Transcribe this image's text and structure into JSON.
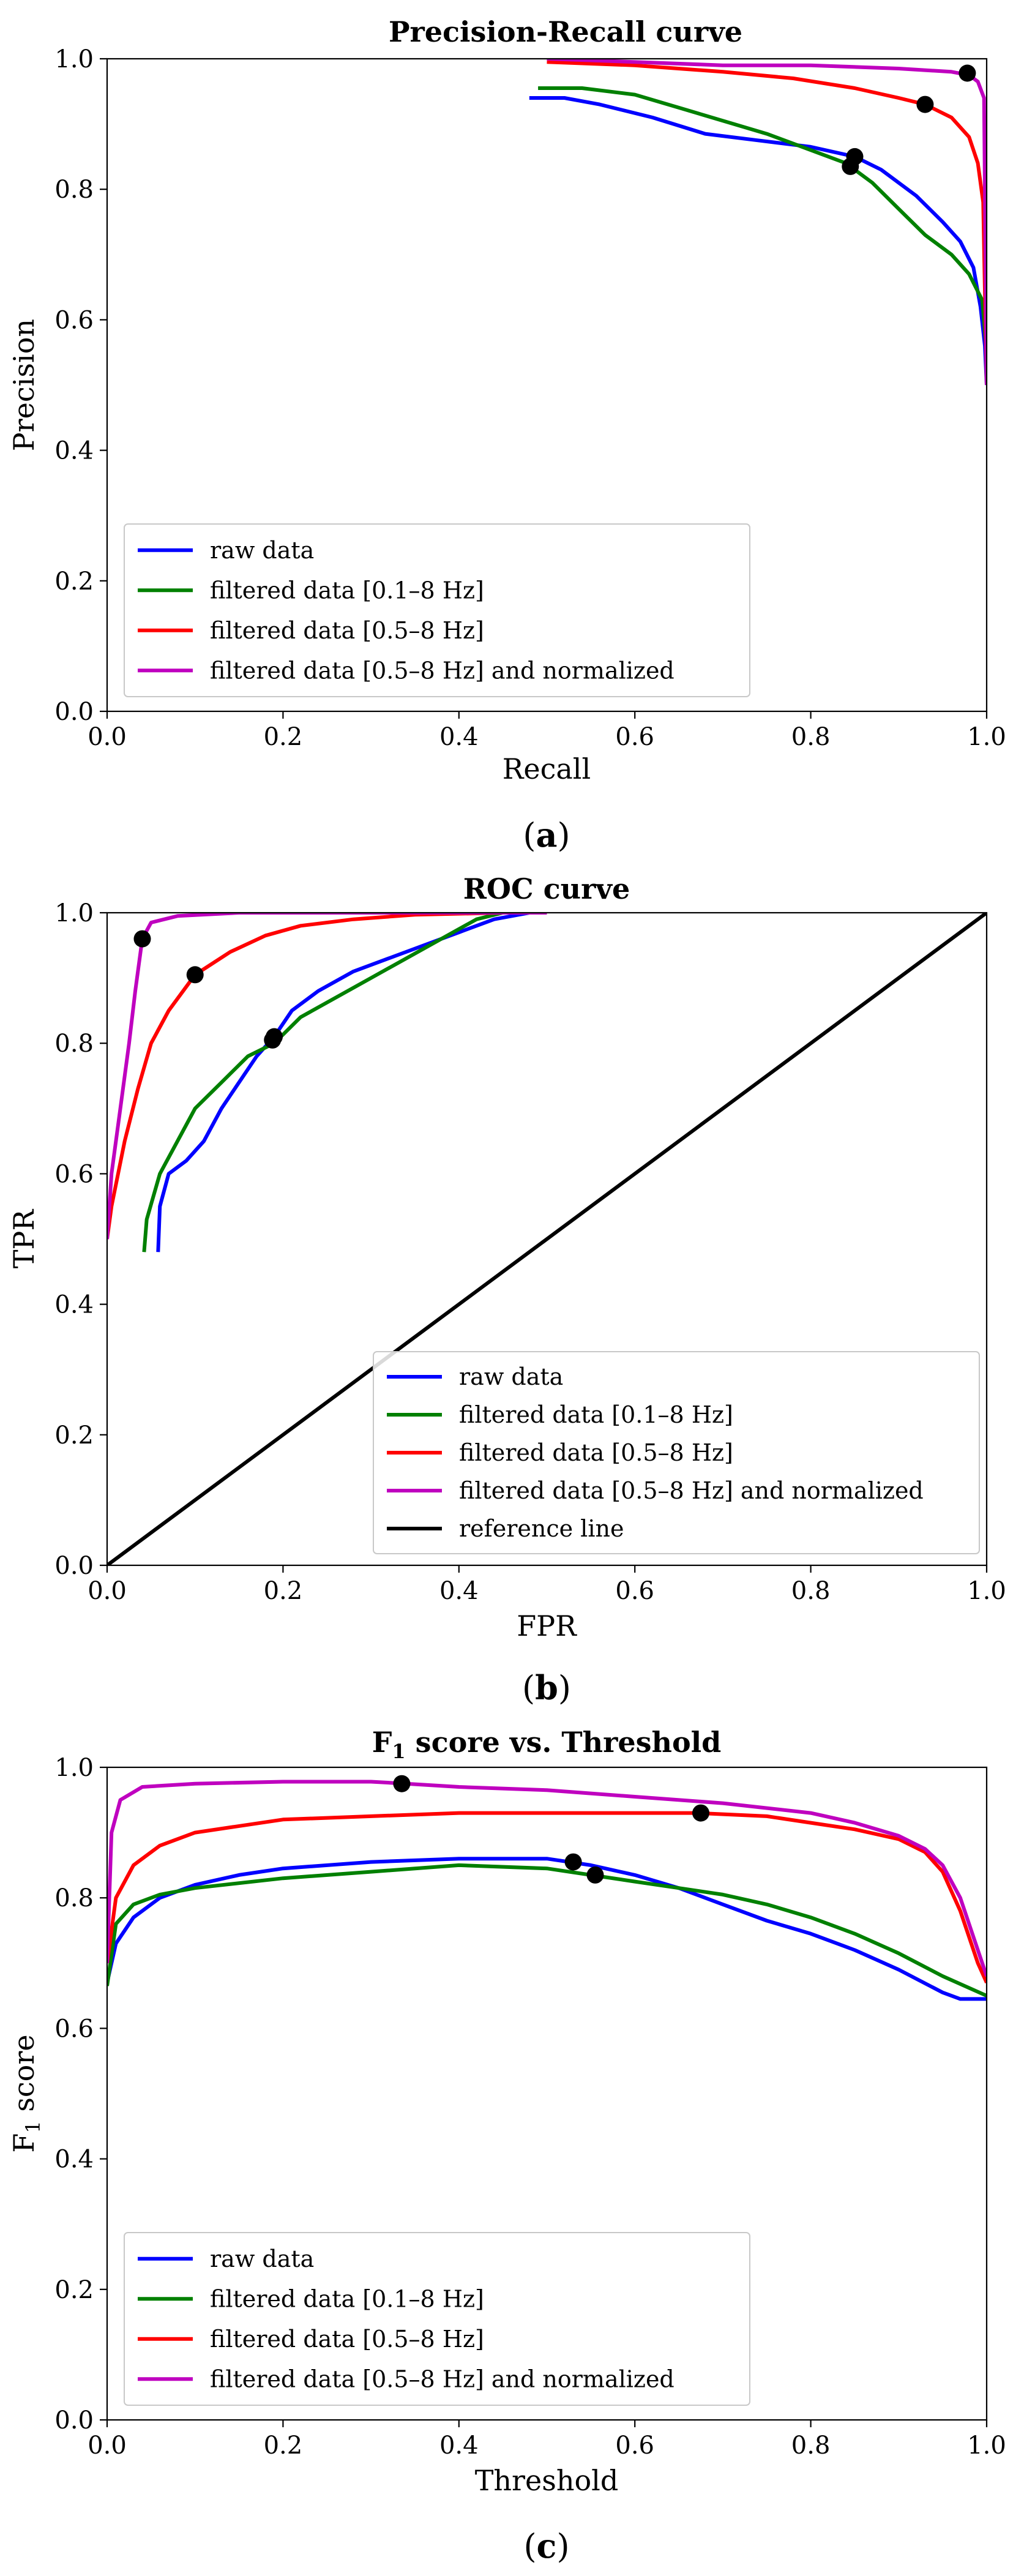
{
  "figure": {
    "captions": [
      "a",
      "b",
      "c"
    ]
  },
  "chart_data": [
    {
      "type": "line",
      "title": "Precision-Recall curve",
      "xlabel": "Recall",
      "ylabel": "Precision",
      "xlim": [
        0,
        1
      ],
      "ylim": [
        0,
        1
      ],
      "xticks": [
        "0.0",
        "0.2",
        "0.4",
        "0.6",
        "0.8",
        "1.0"
      ],
      "yticks": [
        "0.0",
        "0.2",
        "0.4",
        "0.6",
        "0.8",
        "1.0"
      ],
      "legend_position": "lower-left",
      "series": [
        {
          "name": "raw data",
          "color": "#0000ff",
          "points": [
            [
              0.48,
              0.94
            ],
            [
              0.52,
              0.94
            ],
            [
              0.56,
              0.93
            ],
            [
              0.62,
              0.91
            ],
            [
              0.68,
              0.885
            ],
            [
              0.74,
              0.875
            ],
            [
              0.8,
              0.865
            ],
            [
              0.85,
              0.85
            ],
            [
              0.88,
              0.83
            ],
            [
              0.92,
              0.79
            ],
            [
              0.95,
              0.75
            ],
            [
              0.97,
              0.72
            ],
            [
              0.985,
              0.68
            ],
            [
              0.993,
              0.62
            ],
            [
              0.998,
              0.56
            ],
            [
              1.0,
              0.5
            ]
          ],
          "markers": [
            [
              0.85,
              0.85
            ]
          ]
        },
        {
          "name": "filtered data [0.1–8 Hz]",
          "color": "#008000",
          "points": [
            [
              0.49,
              0.955
            ],
            [
              0.54,
              0.955
            ],
            [
              0.6,
              0.945
            ],
            [
              0.65,
              0.925
            ],
            [
              0.7,
              0.905
            ],
            [
              0.75,
              0.885
            ],
            [
              0.8,
              0.86
            ],
            [
              0.84,
              0.84
            ],
            [
              0.87,
              0.81
            ],
            [
              0.9,
              0.77
            ],
            [
              0.93,
              0.73
            ],
            [
              0.96,
              0.7
            ],
            [
              0.98,
              0.67
            ],
            [
              0.995,
              0.63
            ],
            [
              1.0,
              0.55
            ]
          ],
          "markers": [
            [
              0.845,
              0.835
            ]
          ]
        },
        {
          "name": "filtered data [0.5–8 Hz]",
          "color": "#ff0000",
          "points": [
            [
              0.5,
              0.995
            ],
            [
              0.6,
              0.99
            ],
            [
              0.7,
              0.98
            ],
            [
              0.78,
              0.97
            ],
            [
              0.85,
              0.955
            ],
            [
              0.9,
              0.94
            ],
            [
              0.93,
              0.93
            ],
            [
              0.96,
              0.91
            ],
            [
              0.98,
              0.88
            ],
            [
              0.99,
              0.84
            ],
            [
              0.996,
              0.78
            ],
            [
              1.0,
              0.5
            ]
          ],
          "markers": [
            [
              0.93,
              0.93
            ]
          ]
        },
        {
          "name": "filtered data [0.5–8 Hz] and normalized",
          "color": "#bf00bf",
          "points": [
            [
              0.5,
              1.0
            ],
            [
              0.6,
              0.995
            ],
            [
              0.7,
              0.99
            ],
            [
              0.8,
              0.99
            ],
            [
              0.9,
              0.985
            ],
            [
              0.96,
              0.98
            ],
            [
              0.98,
              0.975
            ],
            [
              0.99,
              0.965
            ],
            [
              0.997,
              0.94
            ],
            [
              1.0,
              0.5
            ]
          ],
          "markers": [
            [
              0.978,
              0.978
            ]
          ]
        }
      ]
    },
    {
      "type": "line",
      "title": "ROC curve",
      "xlabel": "FPR",
      "ylabel": "TPR",
      "xlim": [
        0,
        1
      ],
      "ylim": [
        0,
        1
      ],
      "xticks": [
        "0.0",
        "0.2",
        "0.4",
        "0.6",
        "0.8",
        "1.0"
      ],
      "yticks": [
        "0.0",
        "0.2",
        "0.4",
        "0.6",
        "0.8",
        "1.0"
      ],
      "legend_position": "lower-right",
      "series": [
        {
          "name": "raw data",
          "color": "#0000ff",
          "points": [
            [
              0.058,
              0.48
            ],
            [
              0.06,
              0.55
            ],
            [
              0.07,
              0.6
            ],
            [
              0.09,
              0.62
            ],
            [
              0.11,
              0.65
            ],
            [
              0.13,
              0.7
            ],
            [
              0.15,
              0.74
            ],
            [
              0.17,
              0.78
            ],
            [
              0.19,
              0.81
            ],
            [
              0.21,
              0.85
            ],
            [
              0.24,
              0.88
            ],
            [
              0.28,
              0.91
            ],
            [
              0.32,
              0.93
            ],
            [
              0.36,
              0.95
            ],
            [
              0.4,
              0.97
            ],
            [
              0.44,
              0.99
            ],
            [
              0.48,
              1.0
            ]
          ],
          "markers": [
            [
              0.19,
              0.81
            ]
          ]
        },
        {
          "name": "filtered data [0.1–8 Hz]",
          "color": "#008000",
          "points": [
            [
              0.042,
              0.48
            ],
            [
              0.045,
              0.53
            ],
            [
              0.06,
              0.6
            ],
            [
              0.08,
              0.65
            ],
            [
              0.1,
              0.7
            ],
            [
              0.13,
              0.74
            ],
            [
              0.16,
              0.78
            ],
            [
              0.19,
              0.8
            ],
            [
              0.22,
              0.84
            ],
            [
              0.26,
              0.87
            ],
            [
              0.3,
              0.9
            ],
            [
              0.34,
              0.93
            ],
            [
              0.38,
              0.96
            ],
            [
              0.42,
              0.99
            ],
            [
              0.45,
              1.0
            ],
            [
              0.5,
              1.0
            ]
          ],
          "markers": [
            [
              0.188,
              0.805
            ]
          ]
        },
        {
          "name": "filtered data [0.5–8 Hz]",
          "color": "#ff0000",
          "points": [
            [
              0.0,
              0.5
            ],
            [
              0.005,
              0.55
            ],
            [
              0.02,
              0.65
            ],
            [
              0.035,
              0.73
            ],
            [
              0.05,
              0.8
            ],
            [
              0.07,
              0.85
            ],
            [
              0.1,
              0.905
            ],
            [
              0.14,
              0.94
            ],
            [
              0.18,
              0.965
            ],
            [
              0.22,
              0.98
            ],
            [
              0.28,
              0.99
            ],
            [
              0.35,
              0.997
            ],
            [
              0.45,
              1.0
            ],
            [
              0.5,
              1.0
            ]
          ],
          "markers": [
            [
              0.1,
              0.905
            ]
          ]
        },
        {
          "name": "filtered data [0.5–8 Hz] and normalized",
          "color": "#bf00bf",
          "points": [
            [
              0.0,
              0.5
            ],
            [
              0.005,
              0.6
            ],
            [
              0.015,
              0.7
            ],
            [
              0.025,
              0.8
            ],
            [
              0.032,
              0.88
            ],
            [
              0.04,
              0.96
            ],
            [
              0.05,
              0.985
            ],
            [
              0.08,
              0.995
            ],
            [
              0.15,
              1.0
            ],
            [
              0.5,
              1.0
            ]
          ],
          "markers": [
            [
              0.04,
              0.96
            ]
          ]
        },
        {
          "name": "reference line",
          "color": "#000000",
          "points": [
            [
              0.0,
              0.0
            ],
            [
              1.0,
              1.0
            ]
          ],
          "markers": []
        }
      ]
    },
    {
      "type": "line",
      "title": "F",
      "title_sub": "1",
      "title_rest": " score vs. Threshold",
      "xlabel": "Threshold",
      "ylabel": "F",
      "ylabel_sub": "1",
      "ylabel_rest": " score",
      "xlim": [
        0,
        1
      ],
      "ylim": [
        0,
        1
      ],
      "xticks": [
        "0.0",
        "0.2",
        "0.4",
        "0.6",
        "0.8",
        "1.0"
      ],
      "yticks": [
        "0.0",
        "0.2",
        "0.4",
        "0.6",
        "0.8",
        "1.0"
      ],
      "legend_position": "lower-left",
      "series": [
        {
          "name": "raw data",
          "color": "#0000ff",
          "points": [
            [
              0.0,
              0.67
            ],
            [
              0.01,
              0.73
            ],
            [
              0.03,
              0.77
            ],
            [
              0.06,
              0.8
            ],
            [
              0.1,
              0.82
            ],
            [
              0.15,
              0.835
            ],
            [
              0.2,
              0.845
            ],
            [
              0.3,
              0.855
            ],
            [
              0.4,
              0.86
            ],
            [
              0.5,
              0.86
            ],
            [
              0.55,
              0.85
            ],
            [
              0.6,
              0.835
            ],
            [
              0.65,
              0.815
            ],
            [
              0.7,
              0.79
            ],
            [
              0.75,
              0.765
            ],
            [
              0.8,
              0.745
            ],
            [
              0.85,
              0.72
            ],
            [
              0.9,
              0.69
            ],
            [
              0.95,
              0.655
            ],
            [
              0.97,
              0.645
            ],
            [
              1.0,
              0.645
            ]
          ],
          "markers": [
            [
              0.53,
              0.855
            ]
          ]
        },
        {
          "name": "filtered data [0.1–8 Hz]",
          "color": "#008000",
          "points": [
            [
              0.0,
              0.665
            ],
            [
              0.01,
              0.76
            ],
            [
              0.03,
              0.79
            ],
            [
              0.06,
              0.805
            ],
            [
              0.1,
              0.815
            ],
            [
              0.2,
              0.83
            ],
            [
              0.3,
              0.84
            ],
            [
              0.4,
              0.85
            ],
            [
              0.5,
              0.845
            ],
            [
              0.55,
              0.835
            ],
            [
              0.6,
              0.825
            ],
            [
              0.65,
              0.815
            ],
            [
              0.7,
              0.805
            ],
            [
              0.75,
              0.79
            ],
            [
              0.8,
              0.77
            ],
            [
              0.85,
              0.745
            ],
            [
              0.9,
              0.715
            ],
            [
              0.95,
              0.68
            ],
            [
              1.0,
              0.65
            ]
          ],
          "markers": [
            [
              0.555,
              0.835
            ]
          ]
        },
        {
          "name": "filtered data [0.5–8 Hz]",
          "color": "#ff0000",
          "points": [
            [
              0.0,
              0.7
            ],
            [
              0.01,
              0.8
            ],
            [
              0.03,
              0.85
            ],
            [
              0.06,
              0.88
            ],
            [
              0.1,
              0.9
            ],
            [
              0.2,
              0.92
            ],
            [
              0.3,
              0.925
            ],
            [
              0.4,
              0.93
            ],
            [
              0.5,
              0.93
            ],
            [
              0.6,
              0.93
            ],
            [
              0.67,
              0.93
            ],
            [
              0.75,
              0.925
            ],
            [
              0.8,
              0.915
            ],
            [
              0.85,
              0.905
            ],
            [
              0.9,
              0.89
            ],
            [
              0.93,
              0.87
            ],
            [
              0.95,
              0.84
            ],
            [
              0.97,
              0.78
            ],
            [
              0.99,
              0.7
            ],
            [
              1.0,
              0.67
            ]
          ],
          "markers": [
            [
              0.675,
              0.93
            ]
          ]
        },
        {
          "name": "filtered data [0.5–8 Hz] and normalized",
          "color": "#bf00bf",
          "points": [
            [
              0.0,
              0.7
            ],
            [
              0.005,
              0.9
            ],
            [
              0.015,
              0.95
            ],
            [
              0.04,
              0.97
            ],
            [
              0.1,
              0.975
            ],
            [
              0.2,
              0.978
            ],
            [
              0.3,
              0.978
            ],
            [
              0.34,
              0.975
            ],
            [
              0.4,
              0.97
            ],
            [
              0.5,
              0.965
            ],
            [
              0.6,
              0.955
            ],
            [
              0.7,
              0.945
            ],
            [
              0.8,
              0.93
            ],
            [
              0.85,
              0.915
            ],
            [
              0.9,
              0.895
            ],
            [
              0.93,
              0.875
            ],
            [
              0.95,
              0.85
            ],
            [
              0.97,
              0.8
            ],
            [
              0.99,
              0.72
            ],
            [
              1.0,
              0.68
            ]
          ],
          "markers": [
            [
              0.335,
              0.975
            ]
          ]
        }
      ]
    }
  ]
}
